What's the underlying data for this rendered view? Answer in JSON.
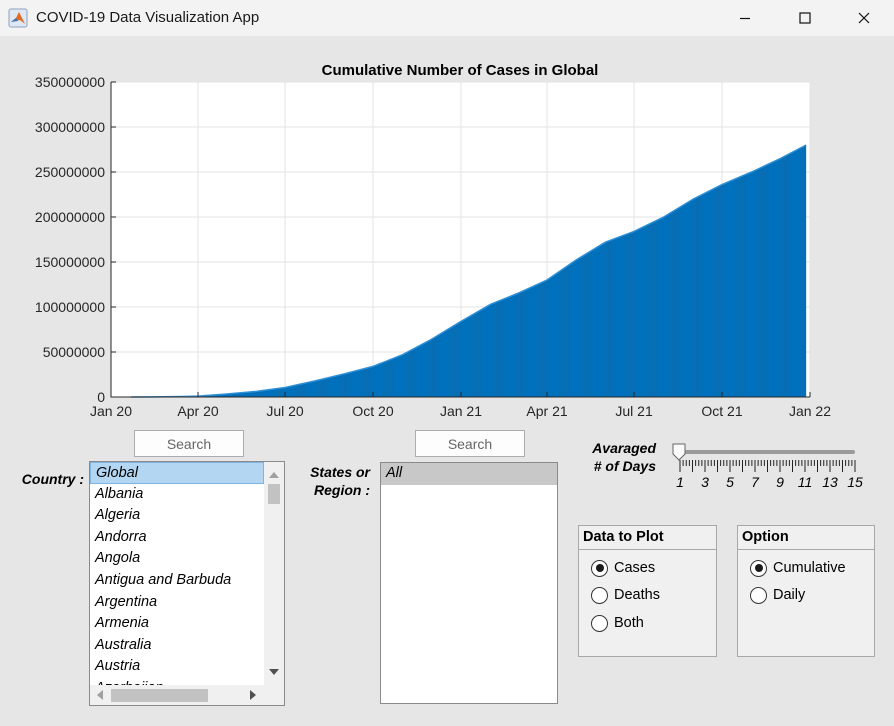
{
  "window": {
    "title": "COVID-19 Data Visualization App"
  },
  "chart_data": {
    "type": "bar",
    "title": "Cumulative Number of Cases in Global",
    "xlabel": "",
    "ylabel": "",
    "x_ticks": [
      "Jan 20",
      "Apr 20",
      "Jul 20",
      "Oct 20",
      "Jan 21",
      "Apr 21",
      "Jul 21",
      "Oct 21",
      "Jan 22"
    ],
    "y_ticks": [
      "0",
      "50000000",
      "100000000",
      "150000000",
      "200000000",
      "250000000",
      "300000000",
      "350000000"
    ],
    "ylim": [
      0,
      350000000
    ],
    "xlim": [
      "2020-01-01",
      "2022-01-01"
    ],
    "grid": true,
    "color": "#0072bd",
    "x": [
      "2020-01-22",
      "2020-02-15",
      "2020-03-15",
      "2020-04-01",
      "2020-05-01",
      "2020-06-01",
      "2020-07-01",
      "2020-08-01",
      "2020-09-01",
      "2020-10-01",
      "2020-11-01",
      "2020-12-01",
      "2021-01-01",
      "2021-02-01",
      "2021-03-01",
      "2021-04-01",
      "2021-05-01",
      "2021-06-01",
      "2021-07-01",
      "2021-08-01",
      "2021-09-01",
      "2021-10-01",
      "2021-11-01",
      "2021-12-01",
      "2021-12-28"
    ],
    "values": [
      500,
      70000,
      600000,
      1000000,
      3400000,
      6300000,
      10600000,
      17800000,
      25700000,
      34000000,
      47000000,
      64000000,
      84000000,
      103000000,
      115000000,
      130000000,
      152000000,
      172000000,
      184000000,
      200000000,
      220000000,
      236000000,
      250000000,
      265000000,
      280000000
    ]
  },
  "search": {
    "country_label": "Search",
    "state_label": "Search"
  },
  "country": {
    "label": "Country :",
    "items": [
      "Global",
      "Albania",
      "Algeria",
      "Andorra",
      "Angola",
      "Antigua and Barbuda",
      "Argentina",
      "Armenia",
      "Australia",
      "Austria",
      "Azerbaijan"
    ],
    "selected": "Global"
  },
  "state": {
    "label_line1": "States or",
    "label_line2": "Region :",
    "items": [
      "All"
    ],
    "selected": "All"
  },
  "averaging": {
    "label_line1": "Avaraged",
    "label_line2": "# of Days",
    "value": 1,
    "min": 1,
    "max": 15,
    "tick_labels": [
      "1",
      "3",
      "5",
      "7",
      "9",
      "11",
      "13",
      "15"
    ]
  },
  "data_to_plot": {
    "title": "Data to Plot",
    "options": [
      "Cases",
      "Deaths",
      "Both"
    ],
    "selected": "Cases"
  },
  "option": {
    "title": "Option",
    "options": [
      "Cumulative",
      "Daily"
    ],
    "selected": "Cumulative"
  }
}
